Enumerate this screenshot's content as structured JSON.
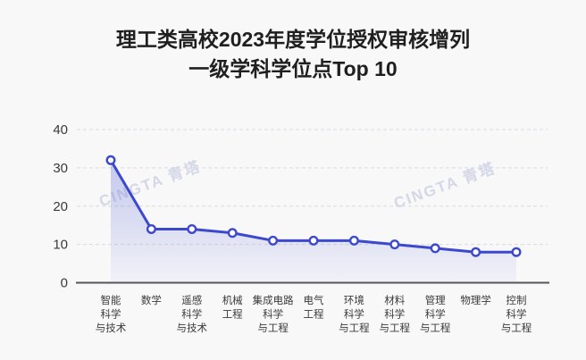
{
  "title": {
    "line1": "理工类高校2023年度学位授权审核增列",
    "line2": "一级学科学位点Top 10"
  },
  "watermark": {
    "text": "CINGTA 青塔"
  },
  "chart_data": {
    "type": "area",
    "title": "理工类高校2023年度学位授权审核增列一级学科学位点Top 10",
    "categories": [
      "智能科学与技术",
      "数学",
      "遥感科学与技术",
      "机械工程",
      "集成电路科学与工程",
      "电气工程",
      "环境科学与工程",
      "材料科学与工程",
      "管理科学与工程",
      "物理学",
      "控制科学与工程"
    ],
    "category_lines": [
      [
        "智能",
        "科学",
        "与技术"
      ],
      [
        "数学"
      ],
      [
        "遥感",
        "科学",
        "与技术"
      ],
      [
        "机械",
        "工程"
      ],
      [
        "集成电路",
        "科学",
        "与工程"
      ],
      [
        "电气",
        "工程"
      ],
      [
        "环境",
        "科学",
        "与工程"
      ],
      [
        "材料",
        "科学",
        "与工程"
      ],
      [
        "管理",
        "科学",
        "与工程"
      ],
      [
        "物理学"
      ],
      [
        "控制",
        "科学",
        "与工程"
      ]
    ],
    "values": [
      32,
      14,
      14,
      13,
      11,
      11,
      11,
      10,
      9,
      8,
      8
    ],
    "xlabel": "",
    "ylabel": "",
    "ylim": [
      0,
      40
    ],
    "yticks": [
      0,
      10,
      20,
      30,
      40
    ],
    "grid": "dashed-horizontal",
    "legend": "none",
    "colors": {
      "line": "#3c49cd",
      "marker_fill": "#ffffff",
      "area_top": "rgba(110,123,216,0.38)",
      "area_bottom": "rgba(110,123,216,0.05)",
      "grid": "#d9dadf",
      "axis": "#55555a",
      "y_tick_label": "#3a3a3a",
      "x_tick_label": "#3a3a3a"
    }
  }
}
